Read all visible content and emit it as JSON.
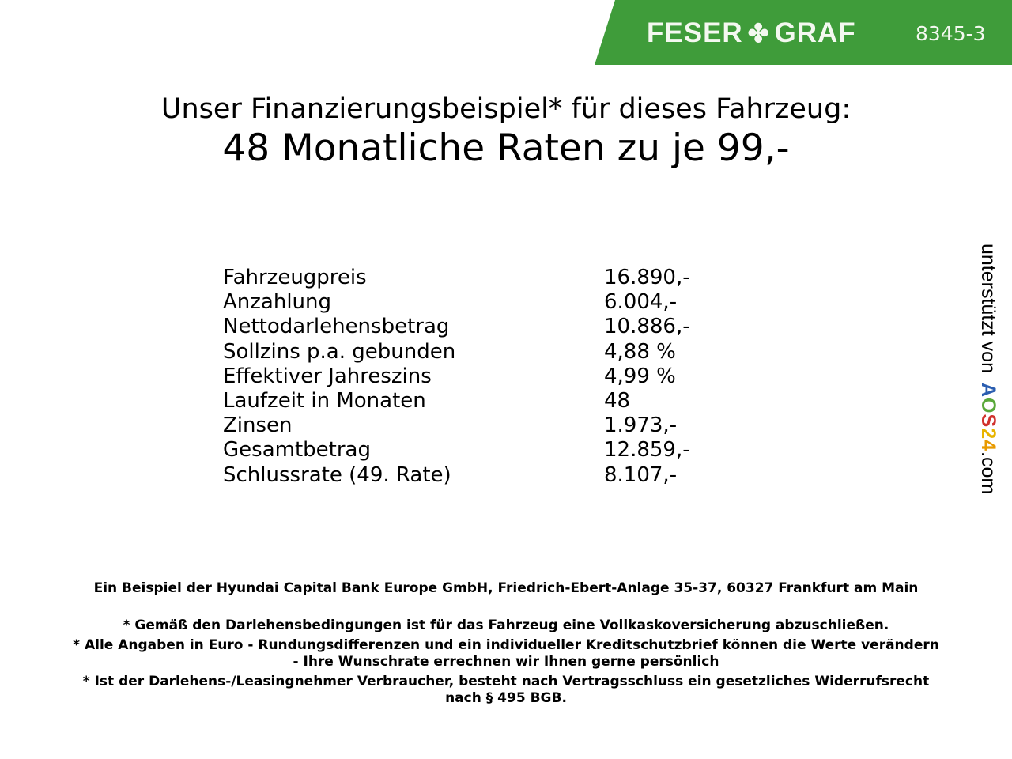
{
  "header": {
    "brand_logo": "FESER GRAF",
    "brand_part1": "FESER",
    "brand_part2": "GRAF",
    "vehicle_code": "8345-3",
    "banner_color": "#3f9c3a",
    "logo_icon": "clover-icon"
  },
  "title": {
    "line1": "Unser Finanzierungsbeispiel* für dieses Fahrzeug:",
    "line2": "48 Monatliche Raten zu je 99,-"
  },
  "rows": [
    {
      "label": "Fahrzeugpreis",
      "value": "16.890,-"
    },
    {
      "label": "Anzahlung",
      "value": "6.004,-"
    },
    {
      "label": "Nettodarlehensbetrag",
      "value": "10.886,-"
    },
    {
      "label": "Sollzins p.a. gebunden",
      "value": "4,88 %"
    },
    {
      "label": "Effektiver Jahreszins",
      "value": "4,99 %"
    },
    {
      "label": "Laufzeit in Monaten",
      "value": "48"
    },
    {
      "label": "Zinsen",
      "value": "1.973,-"
    },
    {
      "label": "Gesamtbetrag",
      "value": "12.859,-"
    },
    {
      "label": "Schlussrate (49. Rate)",
      "value": "8.107,-"
    }
  ],
  "footer": {
    "bank": "Ein Beispiel der Hyundai Capital Bank Europe GmbH, Friedrich-Ebert-Anlage 35-37, 60327 Frankfurt am Main",
    "note1": "* Gemäß den Darlehensbedingungen ist für das Fahrzeug eine Vollkaskoversicherung abzuschließen.",
    "note2a": "* Alle Angaben in Euro - Rundungsdifferenzen und ein individueller Kreditschutzbrief können die Werte verändern",
    "note2b": "- Ihre Wunschrate errechnen wir Ihnen gerne persönlich",
    "note3a": "* Ist der Darlehens-/Leasingnehmer Verbraucher, besteht nach Vertragsschluss ein gesetzliches Widerrufsrecht",
    "note3b": "nach § 495 BGB."
  },
  "side": {
    "text": "unterstützt von",
    "logo": "AOS24",
    "logo_letters": [
      "A",
      "O",
      "S",
      "2",
      "4"
    ],
    "logo_colors": [
      "#2a5db0",
      "#5aa83a",
      "#d0312d",
      "#e8b400",
      "#e89a00"
    ],
    "suffix": ".com"
  }
}
